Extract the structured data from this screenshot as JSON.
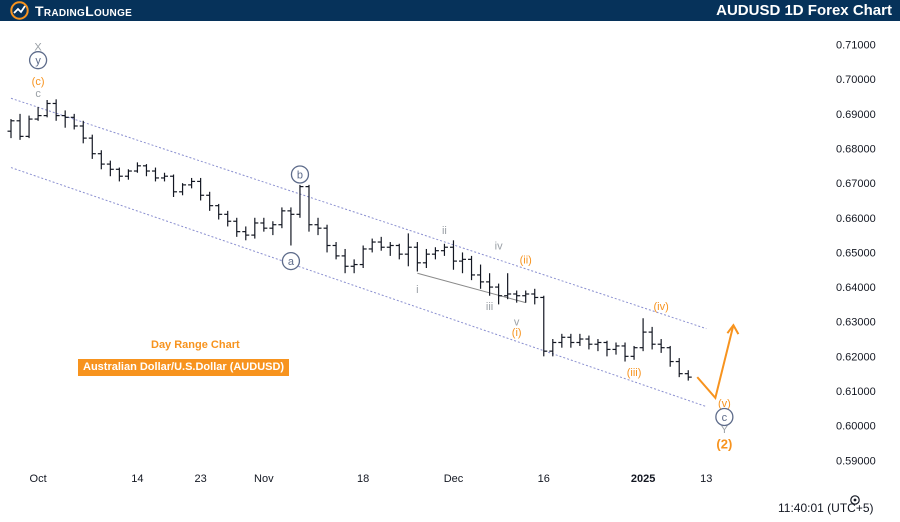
{
  "header": {
    "brand": "TradingLounge",
    "title": "AUDUSD 1D Forex Chart"
  },
  "labels": {
    "subtitle": "Day Range Chart",
    "instrument": "Australian Dollar/U.S.Dollar (AUDUSD)",
    "time": "11:40:01 (UTC+5)"
  },
  "icons": {
    "brand_logo": "brand-logo-icon",
    "settings": "gear-icon"
  },
  "colors": {
    "header_bg": "#06325a",
    "accent_orange": "#f7931e",
    "wave_gray": "#9aa0a6",
    "wave_blue": "#5d6b8a",
    "channel": "#8a8fd0",
    "candle": "#131722"
  },
  "chart_data": {
    "type": "candlestick",
    "title": "AUDUSD 1D Forex Chart",
    "ylim": [
      0.5895,
      0.7145
    ],
    "y_ticks": [
      "0.71000",
      "0.70000",
      "0.69000",
      "0.68000",
      "0.67000",
      "0.66000",
      "0.65000",
      "0.64000",
      "0.63000",
      "0.62000",
      "0.61000",
      "0.60000",
      "0.59000"
    ],
    "x_ticks": [
      {
        "label": "Oct",
        "i": 3
      },
      {
        "label": "14",
        "i": 14
      },
      {
        "label": "23",
        "i": 21
      },
      {
        "label": "Nov",
        "i": 28
      },
      {
        "label": "18",
        "i": 39
      },
      {
        "label": "Dec",
        "i": 49
      },
      {
        "label": "16",
        "i": 59
      },
      {
        "label": "2025",
        "i": 70
      },
      {
        "label": "13",
        "i": 77
      }
    ],
    "ohlc": [
      [
        0.685,
        0.6885,
        0.683,
        0.688
      ],
      [
        0.688,
        0.69,
        0.6825,
        0.6835
      ],
      [
        0.6835,
        0.6895,
        0.683,
        0.6885
      ],
      [
        0.6885,
        0.692,
        0.688,
        0.6895
      ],
      [
        0.6895,
        0.694,
        0.689,
        0.693
      ],
      [
        0.693,
        0.6942,
        0.688,
        0.6895
      ],
      [
        0.6895,
        0.691,
        0.686,
        0.689
      ],
      [
        0.689,
        0.69,
        0.6855,
        0.6865
      ],
      [
        0.6865,
        0.688,
        0.6815,
        0.683
      ],
      [
        0.683,
        0.684,
        0.677,
        0.6785
      ],
      [
        0.6785,
        0.6795,
        0.674,
        0.6755
      ],
      [
        0.6755,
        0.6765,
        0.672,
        0.674
      ],
      [
        0.674,
        0.6745,
        0.6705,
        0.672
      ],
      [
        0.672,
        0.674,
        0.671,
        0.6735
      ],
      [
        0.6735,
        0.676,
        0.673,
        0.675
      ],
      [
        0.675,
        0.6755,
        0.672,
        0.6735
      ],
      [
        0.6735,
        0.6745,
        0.6705,
        0.6715
      ],
      [
        0.6715,
        0.673,
        0.6705,
        0.672
      ],
      [
        0.672,
        0.6725,
        0.666,
        0.6675
      ],
      [
        0.6675,
        0.67,
        0.6665,
        0.6695
      ],
      [
        0.6695,
        0.6715,
        0.6685,
        0.6705
      ],
      [
        0.6705,
        0.6715,
        0.665,
        0.6665
      ],
      [
        0.6665,
        0.6675,
        0.662,
        0.6635
      ],
      [
        0.6635,
        0.664,
        0.6595,
        0.661
      ],
      [
        0.661,
        0.662,
        0.6575,
        0.659
      ],
      [
        0.659,
        0.66,
        0.6545,
        0.656
      ],
      [
        0.656,
        0.6575,
        0.6535,
        0.655
      ],
      [
        0.655,
        0.66,
        0.654,
        0.6585
      ],
      [
        0.6585,
        0.66,
        0.656,
        0.657
      ],
      [
        0.657,
        0.659,
        0.655,
        0.658
      ],
      [
        0.658,
        0.663,
        0.657,
        0.662
      ],
      [
        0.662,
        0.663,
        0.652,
        0.661
      ],
      [
        0.661,
        0.6695,
        0.66,
        0.669
      ],
      [
        0.669,
        0.6695,
        0.656,
        0.658
      ],
      [
        0.658,
        0.66,
        0.655,
        0.657
      ],
      [
        0.657,
        0.658,
        0.65,
        0.652
      ],
      [
        0.652,
        0.653,
        0.648,
        0.649
      ],
      [
        0.649,
        0.651,
        0.644,
        0.646
      ],
      [
        0.646,
        0.648,
        0.644,
        0.6465
      ],
      [
        0.6465,
        0.652,
        0.6455,
        0.651
      ],
      [
        0.651,
        0.654,
        0.65,
        0.653
      ],
      [
        0.653,
        0.6545,
        0.6505,
        0.6515
      ],
      [
        0.6515,
        0.653,
        0.649,
        0.652
      ],
      [
        0.652,
        0.6525,
        0.648,
        0.6495
      ],
      [
        0.6495,
        0.6555,
        0.646,
        0.6515
      ],
      [
        0.6515,
        0.653,
        0.6445,
        0.647
      ],
      [
        0.647,
        0.651,
        0.6455,
        0.6495
      ],
      [
        0.6495,
        0.6515,
        0.648,
        0.6505
      ],
      [
        0.6505,
        0.6525,
        0.649,
        0.6515
      ],
      [
        0.6515,
        0.6535,
        0.645,
        0.6475
      ],
      [
        0.6475,
        0.65,
        0.644,
        0.648
      ],
      [
        0.648,
        0.649,
        0.642,
        0.6435
      ],
      [
        0.6435,
        0.6465,
        0.6395,
        0.6415
      ],
      [
        0.6415,
        0.644,
        0.6375,
        0.64
      ],
      [
        0.64,
        0.641,
        0.635,
        0.6375
      ],
      [
        0.6375,
        0.644,
        0.6365,
        0.638
      ],
      [
        0.638,
        0.639,
        0.6355,
        0.6375
      ],
      [
        0.6375,
        0.639,
        0.6355,
        0.638
      ],
      [
        0.638,
        0.6395,
        0.635,
        0.637
      ],
      [
        0.637,
        0.6375,
        0.62,
        0.6215
      ],
      [
        0.6215,
        0.625,
        0.62,
        0.624
      ],
      [
        0.624,
        0.6265,
        0.6225,
        0.6255
      ],
      [
        0.6255,
        0.6265,
        0.6225,
        0.624
      ],
      [
        0.624,
        0.6265,
        0.623,
        0.625
      ],
      [
        0.625,
        0.626,
        0.622,
        0.6235
      ],
      [
        0.6235,
        0.625,
        0.6215,
        0.624
      ],
      [
        0.624,
        0.6245,
        0.62,
        0.622
      ],
      [
        0.622,
        0.624,
        0.6205,
        0.623
      ],
      [
        0.623,
        0.624,
        0.6185,
        0.62
      ],
      [
        0.62,
        0.623,
        0.619,
        0.6225
      ],
      [
        0.6225,
        0.631,
        0.6215,
        0.627
      ],
      [
        0.627,
        0.6285,
        0.622,
        0.6235
      ],
      [
        0.6235,
        0.625,
        0.621,
        0.6225
      ],
      [
        0.6225,
        0.623,
        0.617,
        0.6185
      ],
      [
        0.6185,
        0.6195,
        0.614,
        0.615
      ],
      [
        0.615,
        0.616,
        0.613,
        0.614
      ]
    ],
    "channels": [
      {
        "from": [
          0,
          0.6945
        ],
        "to": [
          77,
          0.628
        ]
      },
      {
        "from": [
          0,
          0.6745
        ],
        "to": [
          77,
          0.6055
        ]
      }
    ],
    "wave_line": {
      "from": [
        45,
        0.644
      ],
      "to": [
        57,
        0.6355
      ]
    },
    "forecast_path": [
      [
        76,
        0.614
      ],
      [
        78,
        0.608
      ],
      [
        80,
        0.629
      ]
    ],
    "waves": [
      {
        "text": "X",
        "i": 3,
        "y": 0.7095,
        "style": "gray"
      },
      {
        "text": "y",
        "i": 3,
        "y": 0.7055,
        "style": "circle-blue"
      },
      {
        "text": "(c)",
        "i": 3,
        "y": 0.6995,
        "style": "orange"
      },
      {
        "text": "c",
        "i": 3,
        "y": 0.696,
        "style": "gray"
      },
      {
        "text": "b",
        "i": 32,
        "y": 0.6725,
        "style": "circle-blue"
      },
      {
        "text": "a",
        "i": 31,
        "y": 0.6475,
        "style": "circle-blue"
      },
      {
        "text": "ii",
        "i": 48,
        "y": 0.6565,
        "style": "gray"
      },
      {
        "text": "iv",
        "i": 54,
        "y": 0.652,
        "style": "gray"
      },
      {
        "text": "i",
        "i": 45,
        "y": 0.6395,
        "style": "gray"
      },
      {
        "text": "iii",
        "i": 53,
        "y": 0.6345,
        "style": "gray"
      },
      {
        "text": "v",
        "i": 56,
        "y": 0.63,
        "style": "gray"
      },
      {
        "text": "(i)",
        "i": 56,
        "y": 0.627,
        "style": "orange"
      },
      {
        "text": "(ii)",
        "i": 57,
        "y": 0.648,
        "style": "orange"
      },
      {
        "text": "(iii)",
        "i": 69,
        "y": 0.6155,
        "style": "orange"
      },
      {
        "text": "(iv)",
        "i": 72,
        "y": 0.6345,
        "style": "orange"
      },
      {
        "text": "(v)",
        "i": 79,
        "y": 0.6065,
        "style": "orange"
      },
      {
        "text": "c",
        "i": 79,
        "y": 0.6025,
        "style": "circle-blue"
      },
      {
        "text": "Y",
        "i": 79,
        "y": 0.599,
        "style": "gray"
      },
      {
        "text": "(2)",
        "i": 79,
        "y": 0.5945,
        "style": "orange-bold"
      }
    ]
  }
}
